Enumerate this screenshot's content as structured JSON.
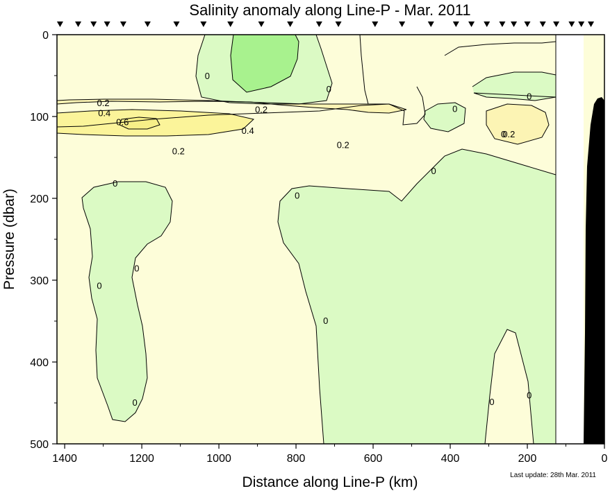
{
  "chart_data": {
    "type": "contour",
    "title": "Salinity anomaly along Line-P - Mar. 2011",
    "xlabel": "Distance along Line-P (km)",
    "ylabel": "Pressure (dbar)",
    "xlim": [
      1420,
      0
    ],
    "ylim": [
      500,
      0
    ],
    "x_ticks": [
      1400,
      1200,
      1000,
      800,
      600,
      400,
      200,
      0
    ],
    "y_ticks": [
      0,
      100,
      200,
      300,
      400,
      500
    ],
    "station_distances_km": [
      1412,
      1365,
      1325,
      1290,
      1248,
      1185,
      1110,
      1040,
      970,
      890,
      815,
      740,
      690,
      595,
      525,
      450,
      385,
      345,
      305,
      265,
      235,
      200,
      160,
      125,
      85,
      60,
      35
    ],
    "colors": {
      "zero_to_0_2": "#fdfdd9",
      "0_2_to_0_4": "#fcf4b4",
      "0_4_to_0_6": "#fbf49a",
      "above_0_6": "#f7ef88",
      "negative": "#dbfac4",
      "negative_strong": "#a8f28e",
      "bathymetry": "#000000"
    },
    "contour_labels": [
      {
        "text": "0.2",
        "x": 1300,
        "y": 84
      },
      {
        "text": "0.4",
        "x": 1297,
        "y": 96
      },
      {
        "text": "0.6",
        "x": 1250,
        "y": 107
      },
      {
        "text": "0.2",
        "x": 890,
        "y": 92
      },
      {
        "text": "0.4",
        "x": 925,
        "y": 118
      },
      {
        "text": "0.2",
        "x": 1105,
        "y": 143
      },
      {
        "text": "0.2",
        "x": 678,
        "y": 135
      },
      {
        "text": "0",
        "x": 1030,
        "y": 51
      },
      {
        "text": "0",
        "x": 715,
        "y": 67
      },
      {
        "text": "0",
        "x": 388,
        "y": 91
      },
      {
        "text": "0",
        "x": 195,
        "y": 76
      },
      {
        "text": "0",
        "x": 262,
        "y": 122
      },
      {
        "text": "0.2",
        "x": 248,
        "y": 122
      },
      {
        "text": "0",
        "x": 1269,
        "y": 182
      },
      {
        "text": "0",
        "x": 1213,
        "y": 286
      },
      {
        "text": "0",
        "x": 1310,
        "y": 307
      },
      {
        "text": "0",
        "x": 797,
        "y": 197
      },
      {
        "text": "0",
        "x": 443,
        "y": 167
      },
      {
        "text": "0",
        "x": 723,
        "y": 350
      },
      {
        "text": "0",
        "x": 292,
        "y": 449
      },
      {
        "text": "0",
        "x": 195,
        "y": 441
      },
      {
        "text": "0",
        "x": 1218,
        "y": 450
      }
    ],
    "grid": false,
    "legend": "none"
  },
  "footnote": "Last update: 28th Mar. 2011"
}
